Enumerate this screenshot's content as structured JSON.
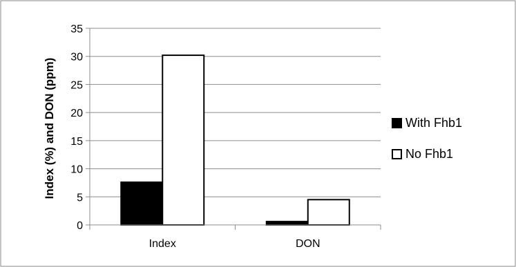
{
  "chart_data": {
    "type": "bar",
    "title": "",
    "xlabel": "",
    "ylabel": "Index (%) and DON (ppm)",
    "categories": [
      "Index",
      "DON"
    ],
    "series": [
      {
        "name": "With Fhb1",
        "values": [
          7.6,
          0.6
        ],
        "color": "#000000"
      },
      {
        "name": "No Fhb1",
        "values": [
          30.2,
          4.5
        ],
        "color": "#ffffff"
      }
    ],
    "ylim": [
      0,
      35
    ],
    "yticks": [
      0,
      5,
      10,
      15,
      20,
      25,
      30,
      35
    ],
    "grid": true,
    "legend_position": "right"
  }
}
